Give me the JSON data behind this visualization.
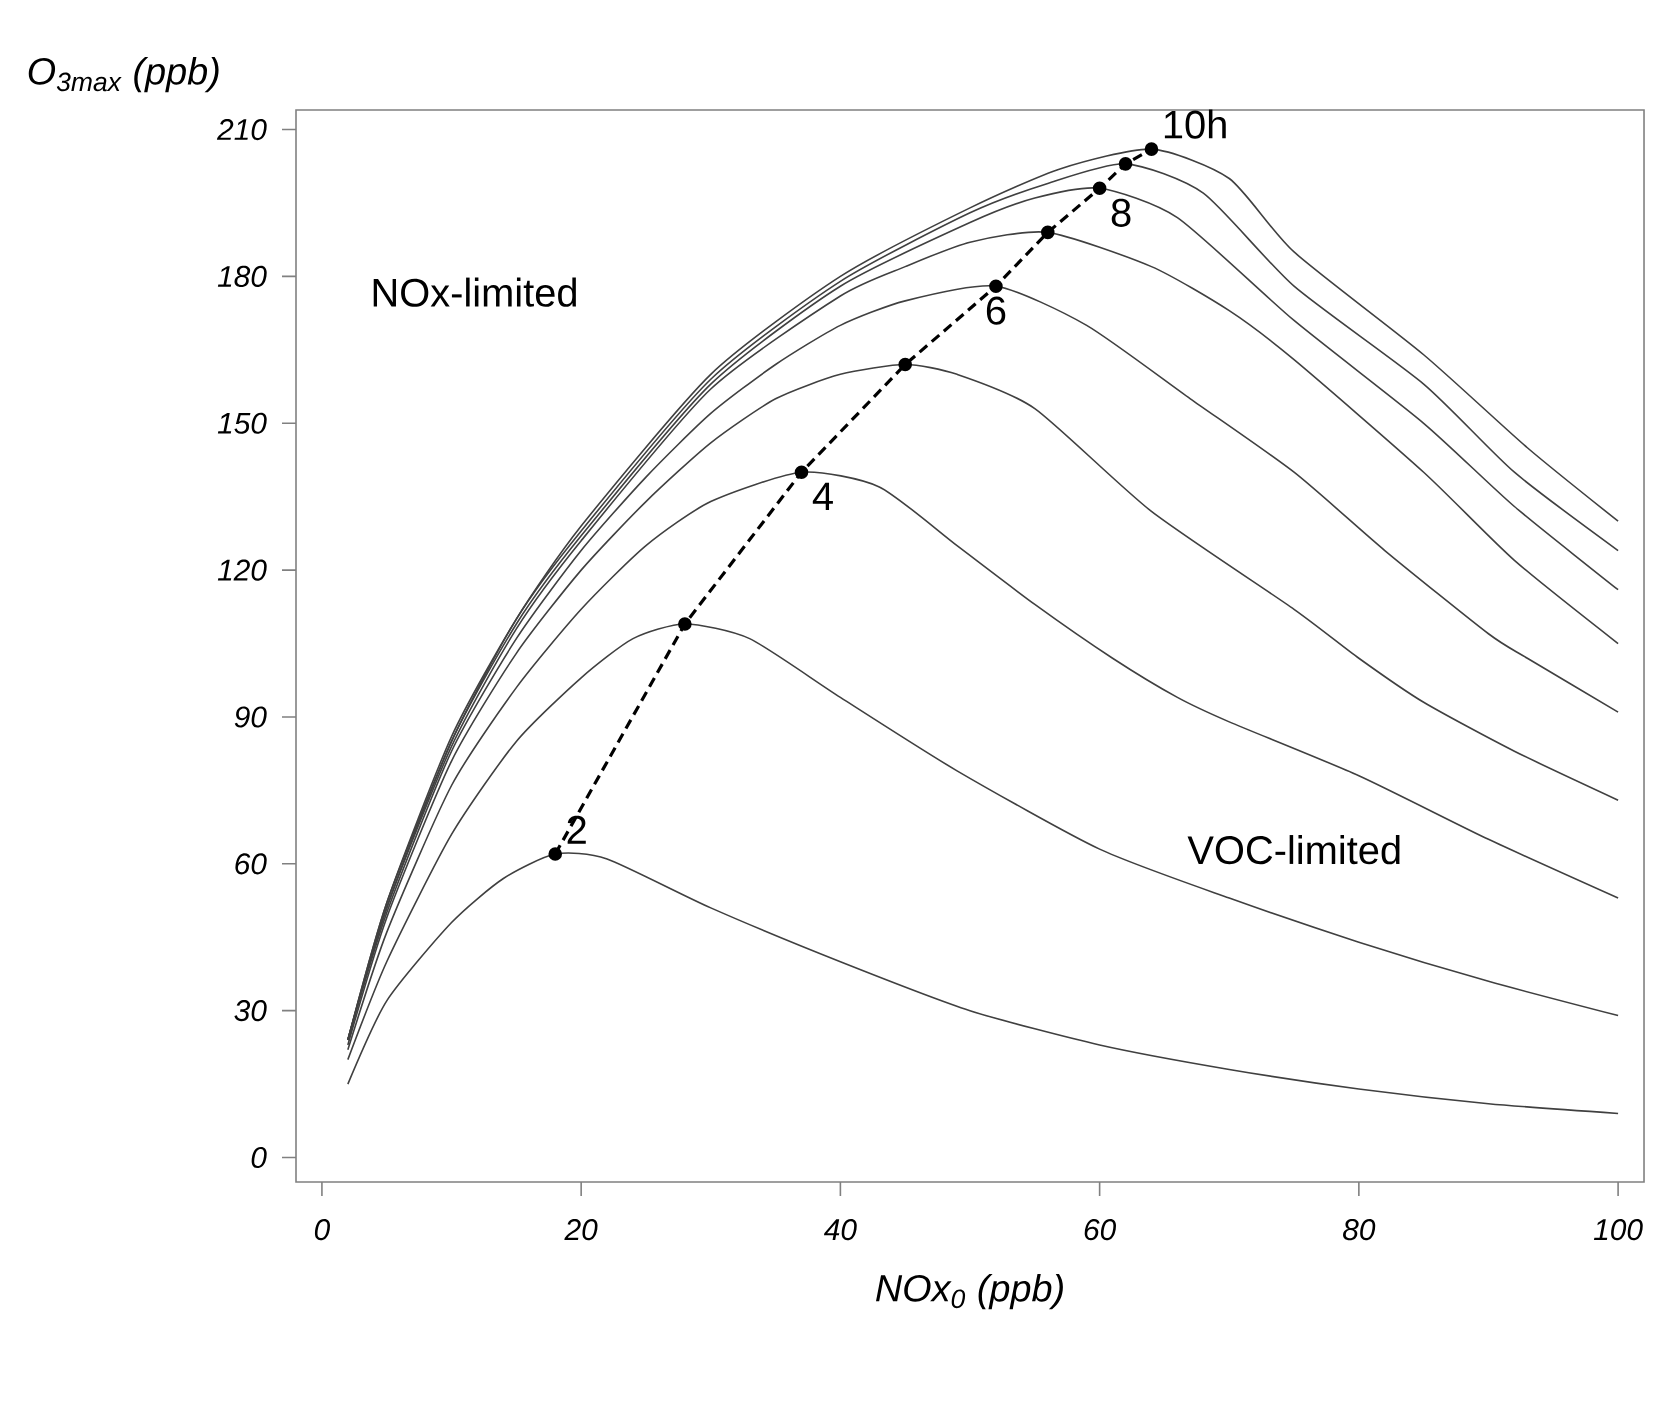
{
  "chart_data": {
    "type": "line",
    "xlabel": "NOx$_{0}$ (ppb)",
    "ylabel": "O$_{3max}$ (ppb)",
    "xlim": [
      -2,
      102
    ],
    "ylim": [
      -5,
      214
    ],
    "xticks": [
      0,
      20,
      40,
      60,
      80,
      100
    ],
    "yticks": [
      0,
      30,
      60,
      90,
      120,
      150,
      180,
      210
    ],
    "series": [
      {
        "color": "#404040",
        "x": [
          2,
          5,
          10,
          14,
          18,
          22,
          30,
          40,
          50,
          60,
          70,
          80,
          90,
          100
        ],
        "values": [
          15,
          32,
          48,
          57,
          62,
          61,
          51,
          40,
          30,
          23,
          18,
          14,
          11,
          9
        ]
      },
      {
        "color": "#404040",
        "x": [
          2,
          5,
          10,
          15,
          20,
          24,
          28,
          33,
          40,
          49,
          60,
          70,
          80,
          90,
          100
        ],
        "values": [
          20,
          40,
          66,
          85,
          98,
          106,
          109,
          106,
          94,
          79,
          63,
          53,
          44,
          36,
          29
        ]
      },
      {
        "color": "#404040",
        "x": [
          2,
          5,
          10,
          15,
          20,
          25,
          30,
          37,
          43,
          49,
          55,
          61,
          66,
          70,
          80,
          90,
          100
        ],
        "values": [
          22,
          46,
          76,
          96,
          112,
          125,
          134,
          140,
          137,
          125,
          113,
          102,
          94,
          89,
          78,
          65,
          53
        ]
      },
      {
        "color": "#404040",
        "x": [
          2,
          5,
          10,
          15,
          20,
          25,
          30,
          35,
          40,
          45,
          49,
          55,
          64,
          75,
          80,
          85,
          92,
          100
        ],
        "values": [
          23,
          49,
          81,
          103,
          120,
          134,
          146,
          155,
          160,
          162,
          160,
          153,
          132,
          112,
          102,
          93,
          83,
          73
        ]
      },
      {
        "color": "#404040",
        "x": [
          2,
          5,
          10,
          15,
          20,
          25,
          30,
          35,
          40,
          45,
          52,
          59,
          67,
          75,
          82,
          90,
          93,
          100
        ],
        "values": [
          24,
          50,
          83,
          106,
          124,
          139,
          152,
          162,
          170,
          175,
          178,
          170,
          155,
          140,
          124,
          107,
          102,
          91
        ]
      },
      {
        "color": "#404040",
        "x": [
          2,
          5,
          10,
          15,
          20,
          30,
          40,
          45,
          50,
          56,
          64,
          70,
          75,
          85,
          92,
          100
        ],
        "values": [
          24,
          51,
          84,
          108,
          126,
          157,
          176,
          182,
          187,
          189,
          182,
          173,
          163,
          140,
          122,
          105
        ]
      },
      {
        "color": "#404040",
        "x": [
          2,
          5,
          10,
          15,
          20,
          30,
          40,
          50,
          55,
          60,
          66,
          75,
          85,
          92,
          100
        ],
        "values": [
          24,
          51,
          85,
          109,
          127,
          158,
          178,
          191,
          196,
          198,
          192,
          171,
          150,
          133,
          116
        ]
      },
      {
        "color": "#404040",
        "x": [
          2,
          5,
          10,
          15,
          20,
          30,
          40,
          50,
          56,
          62,
          68,
          75,
          85,
          92,
          100
        ],
        "values": [
          24,
          52,
          85,
          110,
          128,
          159,
          179,
          193,
          199,
          203,
          197,
          178,
          158,
          140,
          124
        ]
      },
      {
        "color": "#404040",
        "x": [
          2,
          5,
          10,
          15,
          20,
          30,
          40,
          50,
          57,
          64,
          70,
          75,
          85,
          93,
          100
        ],
        "values": [
          24,
          52,
          86,
          110,
          129,
          160,
          180,
          194,
          202,
          206,
          200,
          185,
          164,
          145,
          130
        ]
      },
      {
        "color": "#000000",
        "line_style": "dashed",
        "marker": "circle",
        "x": [
          18,
          28,
          37,
          45,
          52,
          56,
          60,
          62,
          64
        ],
        "values": [
          62,
          109,
          140,
          162,
          178,
          189,
          198,
          203,
          206
        ]
      }
    ],
    "annotations": [
      "NOx-limited",
      "VOC-limited",
      {
        "text": "2",
        "x": 18,
        "y": 62
      },
      {
        "text": "4",
        "x": 37,
        "y": 140
      },
      {
        "text": "6",
        "x": 52,
        "y": 178
      },
      {
        "text": "8",
        "x": 60,
        "y": 198
      },
      {
        "text": "10h",
        "x": 64,
        "y": 206
      }
    ]
  }
}
